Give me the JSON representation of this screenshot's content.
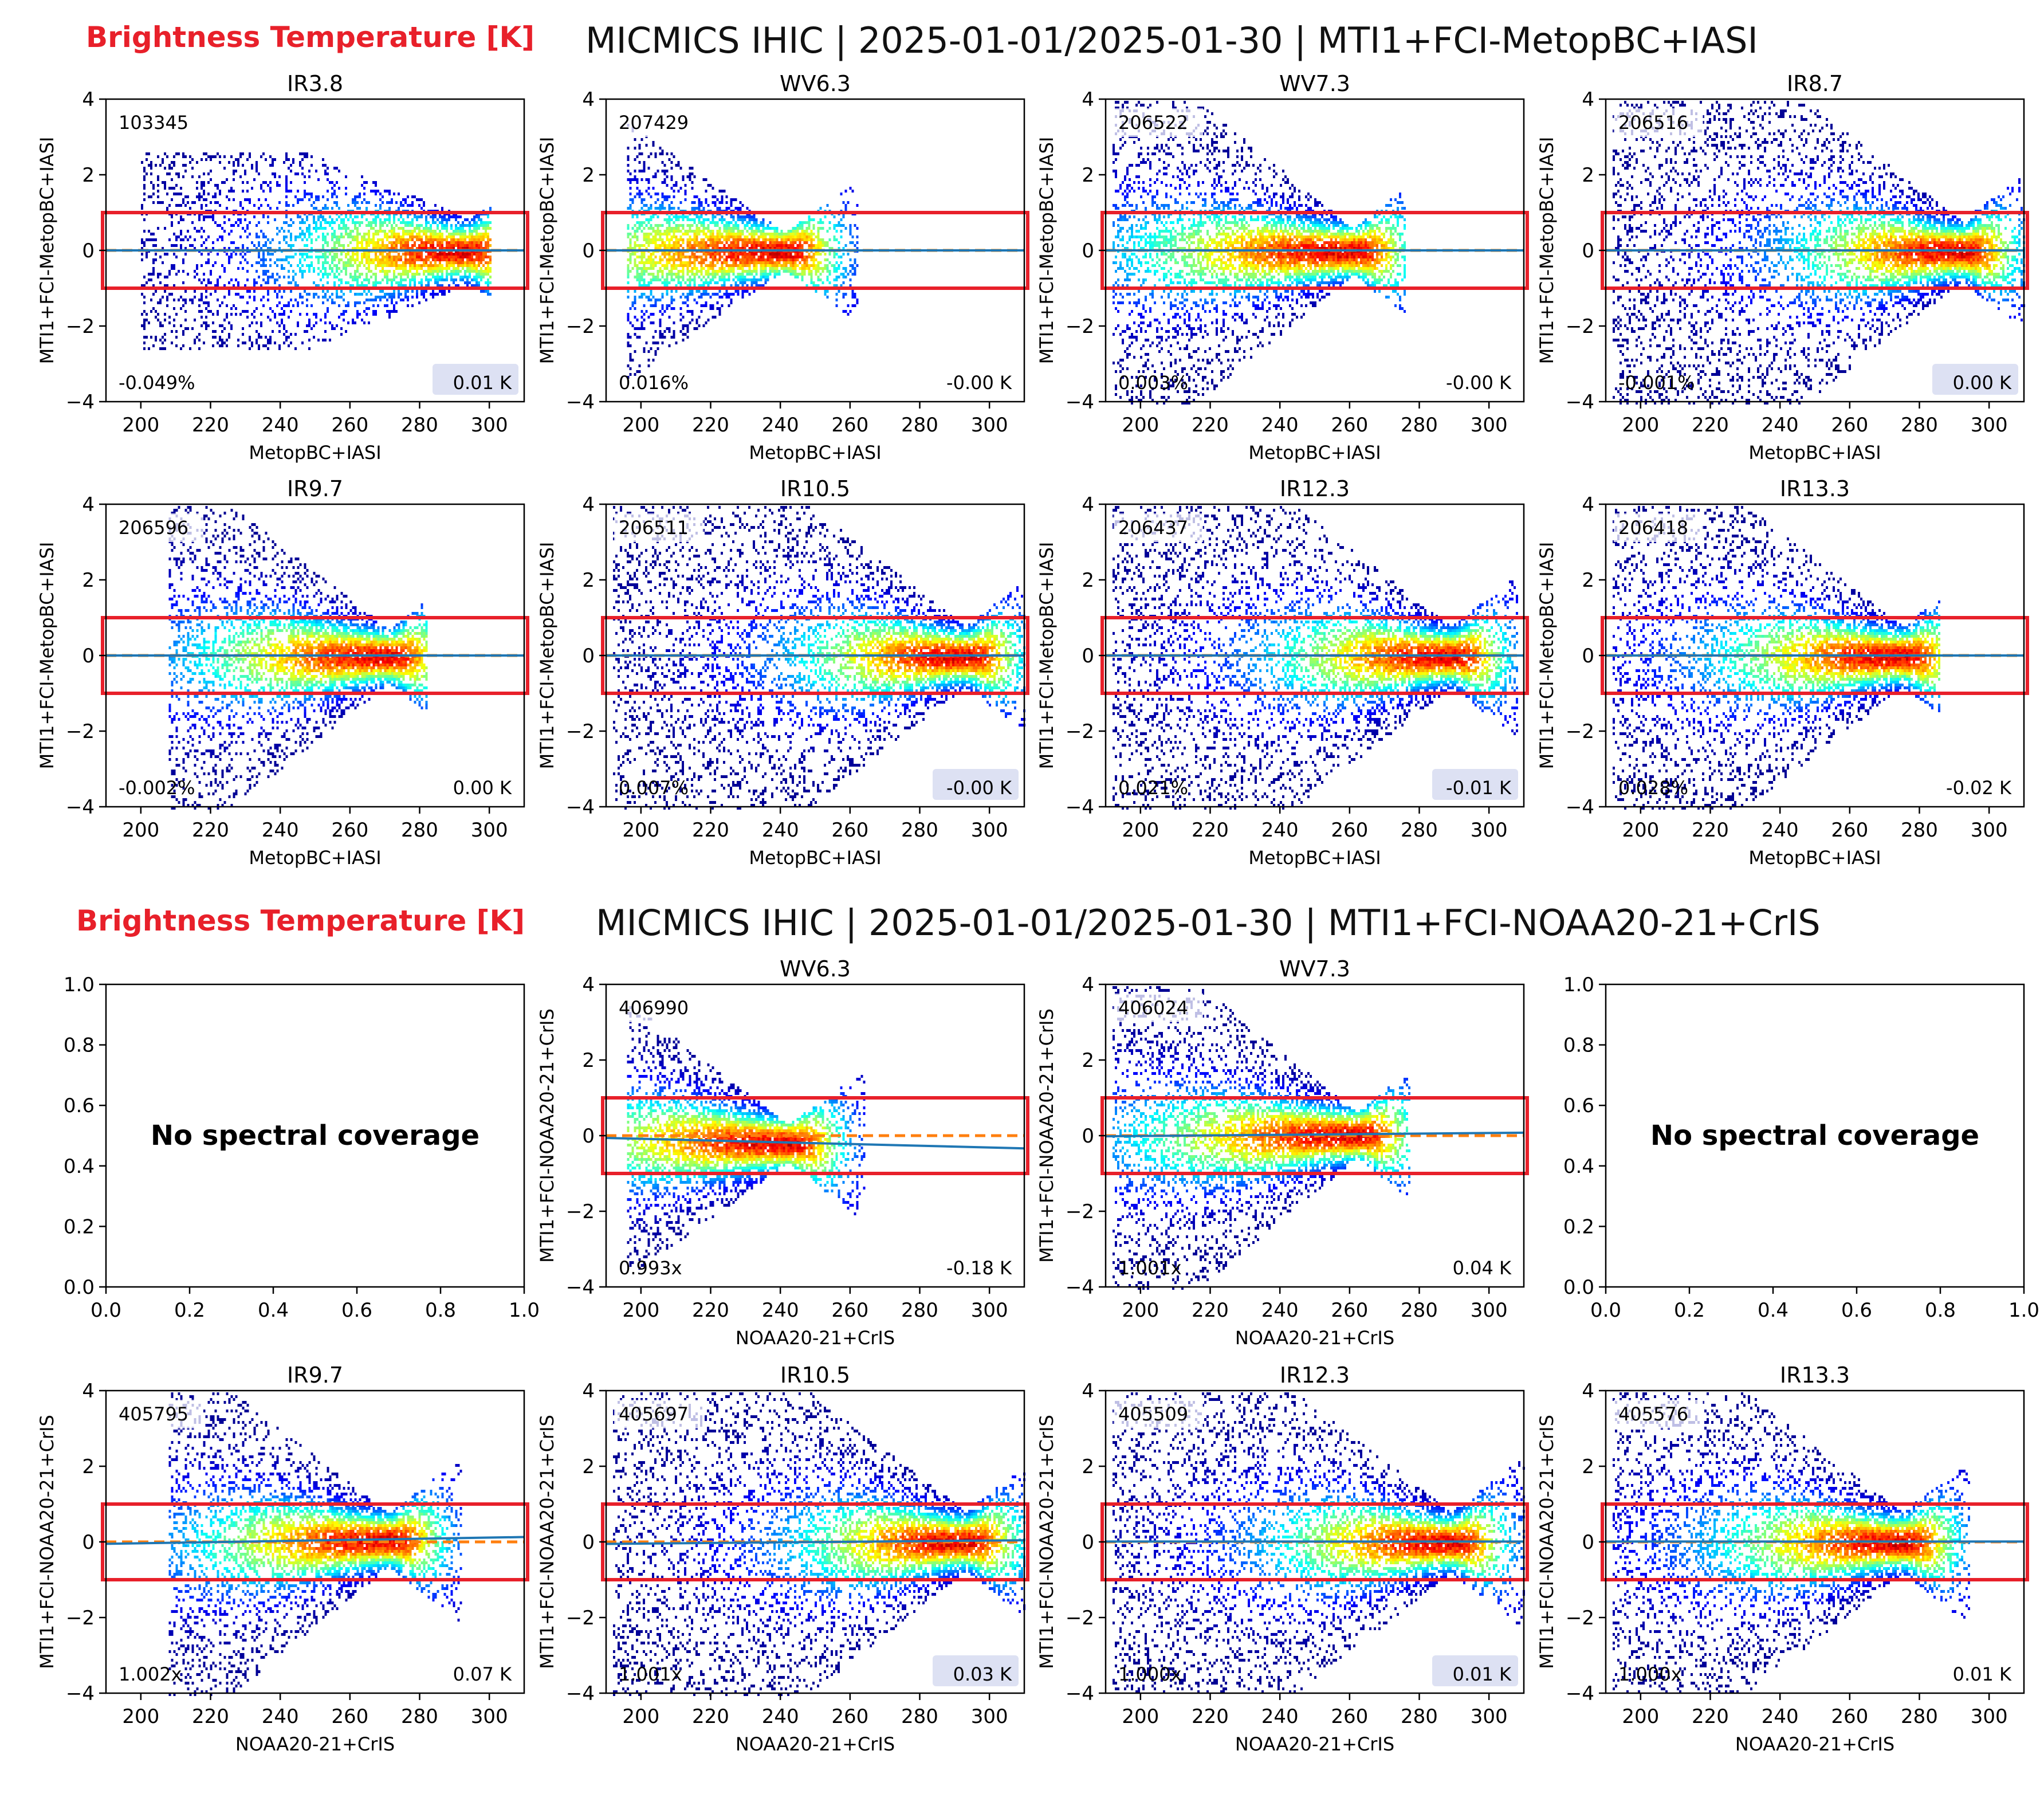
{
  "colors": {
    "accent": "#e8202a",
    "fit_line": "#1f77b4",
    "ref_line": "#ff7f0e",
    "axis": "#000000"
  },
  "figures": [
    {
      "label": "Brightness Temperature [K]",
      "title": "MICMICS IHIC | 2025-01-01/2025-01-30 | MTI1+FCI-MetopBC+IASI",
      "ylabel": "MTI1+FCI-MetopBC+IASI",
      "xlabel": "MetopBC+IASI"
    },
    {
      "label": "Brightness Temperature [K]",
      "title": "MICMICS IHIC | 2025-01-01/2025-01-30 | MTI1+FCI-NOAA20-21+CrIS",
      "ylabel": "MTI1+FCI-NOAA20-21+CrIS",
      "xlabel": "NOAA20-21+CrIS"
    }
  ],
  "chart_data": [
    {
      "type": "heatmap",
      "figure": 0,
      "channel": "IR3.8",
      "count": "103345",
      "corner_left": "-0.049%",
      "corner_right": "0.01 K",
      "xlim": [
        190,
        310
      ],
      "ylim": [
        -4,
        4
      ],
      "xticks": [
        200,
        220,
        240,
        260,
        280,
        300
      ],
      "yticks": [
        4,
        2,
        0,
        -2,
        -4
      ],
      "peak": [
        293,
        0
      ],
      "xmin": 200,
      "xmax": 300,
      "spread": [
        0.9,
        2.6
      ],
      "skew": 0.9,
      "fit_slope": 0,
      "legend_box": true,
      "highlight_band": [
        -1,
        1
      ]
    },
    {
      "type": "heatmap",
      "figure": 0,
      "channel": "WV6.3",
      "count": "207429",
      "corner_left": "0.016%",
      "corner_right": "-0.00 K",
      "xlim": [
        190,
        310
      ],
      "ylim": [
        -4,
        4
      ],
      "xticks": [
        200,
        220,
        240,
        260,
        280,
        300
      ],
      "yticks": [
        4,
        2,
        0,
        -2,
        -4
      ],
      "peak": [
        241,
        0
      ],
      "xmin": 196,
      "xmax": 262,
      "spread": [
        0.5,
        3.4
      ],
      "skew": 1.5,
      "fit_slope": 0,
      "legend_box": false,
      "highlight_band": [
        -1,
        1
      ]
    },
    {
      "type": "heatmap",
      "figure": 0,
      "channel": "WV7.3",
      "count": "206522",
      "corner_left": "0.003%",
      "corner_right": "-0.00 K",
      "xlim": [
        190,
        310
      ],
      "ylim": [
        -4,
        4
      ],
      "xticks": [
        200,
        220,
        240,
        260,
        280,
        300
      ],
      "yticks": [
        4,
        2,
        0,
        -2,
        -4
      ],
      "peak": [
        261,
        0
      ],
      "xmin": 192,
      "xmax": 276,
      "spread": [
        0.6,
        4
      ],
      "skew": 1.6,
      "fit_slope": 0,
      "legend_box": false,
      "highlight_band": [
        -1,
        1
      ]
    },
    {
      "type": "heatmap",
      "figure": 0,
      "channel": "IR8.7",
      "count": "206516",
      "corner_left": "-0.001%",
      "corner_right": "0.00 K",
      "xlim": [
        190,
        310
      ],
      "ylim": [
        -4,
        4
      ],
      "xticks": [
        200,
        220,
        240,
        260,
        280,
        300
      ],
      "yticks": [
        4,
        2,
        0,
        -2,
        -4
      ],
      "peak": [
        292,
        0
      ],
      "xmin": 192,
      "xmax": 310,
      "spread": [
        0.8,
        4
      ],
      "skew": 0.9,
      "fit_slope": 0,
      "legend_box": true,
      "highlight_band": [
        -1,
        1
      ]
    },
    {
      "type": "heatmap",
      "figure": 0,
      "channel": "IR9.7",
      "count": "206596",
      "corner_left": "-0.002%",
      "corner_right": "0.00 K",
      "xlim": [
        190,
        310
      ],
      "ylim": [
        -4,
        4
      ],
      "xticks": [
        200,
        220,
        240,
        260,
        280,
        300
      ],
      "yticks": [
        4,
        2,
        0,
        -2,
        -4
      ],
      "peak": [
        271,
        0
      ],
      "xmin": 208,
      "xmax": 282,
      "spread": [
        0.7,
        4
      ],
      "skew": 1.2,
      "fit_slope": 0,
      "legend_box": false,
      "highlight_band": [
        -1,
        1
      ]
    },
    {
      "type": "heatmap",
      "figure": 0,
      "channel": "IR10.5",
      "count": "206511",
      "corner_left": "0.007%",
      "corner_right": "-0.00 K",
      "xlim": [
        190,
        310
      ],
      "ylim": [
        -4,
        4
      ],
      "xticks": [
        200,
        220,
        240,
        260,
        280,
        300
      ],
      "yticks": [
        4,
        2,
        0,
        -2,
        -4
      ],
      "peak": [
        293,
        0
      ],
      "xmin": 192,
      "xmax": 310,
      "spread": [
        0.8,
        4
      ],
      "skew": 0.9,
      "fit_slope": 0,
      "legend_box": true,
      "highlight_band": [
        -1,
        1
      ]
    },
    {
      "type": "heatmap",
      "figure": 0,
      "channel": "IR12.3",
      "count": "206437",
      "corner_left": "0.021%",
      "corner_right": "-0.01 K",
      "xlim": [
        190,
        310
      ],
      "ylim": [
        -4,
        4
      ],
      "xticks": [
        200,
        220,
        240,
        260,
        280,
        300
      ],
      "yticks": [
        4,
        2,
        0,
        -2,
        -4
      ],
      "peak": [
        289,
        0
      ],
      "xmin": 192,
      "xmax": 308,
      "spread": [
        0.8,
        4
      ],
      "skew": 1.0,
      "fit_slope": 0,
      "legend_box": true,
      "highlight_band": [
        -1,
        1
      ]
    },
    {
      "type": "heatmap",
      "figure": 0,
      "channel": "IR13.3",
      "count": "206418",
      "corner_left": "0.028%",
      "corner_right": "-0.02 K",
      "xlim": [
        190,
        310
      ],
      "ylim": [
        -4,
        4
      ],
      "xticks": [
        200,
        220,
        240,
        260,
        280,
        300
      ],
      "yticks": [
        4,
        2,
        0,
        -2,
        -4
      ],
      "peak": [
        275,
        0
      ],
      "xmin": 192,
      "xmax": 286,
      "spread": [
        0.8,
        4
      ],
      "skew": 1.1,
      "fit_slope": 0,
      "legend_box": false,
      "highlight_band": [
        -1,
        1
      ]
    },
    {
      "type": "empty",
      "figure": 1,
      "message": "No spectral coverage",
      "xlim": [
        0,
        1
      ],
      "ylim": [
        0,
        1
      ],
      "xticks": [
        "0.0",
        "0.2",
        "0.4",
        "0.6",
        "0.8",
        "1.0"
      ],
      "yticks": [
        "1.0",
        "0.8",
        "0.6",
        "0.4",
        "0.2",
        "0.0"
      ]
    },
    {
      "type": "heatmap",
      "figure": 1,
      "channel": "WV6.3",
      "count": "406990",
      "corner_left": "0.993x",
      "corner_right": "-0.18 K",
      "xlim": [
        190,
        310
      ],
      "ylim": [
        -4,
        4
      ],
      "xticks": [
        200,
        220,
        240,
        260,
        280,
        300
      ],
      "yticks": [
        4,
        2,
        0,
        -2,
        -4
      ],
      "peak": [
        242,
        -0.18
      ],
      "xmin": 196,
      "xmax": 264,
      "spread": [
        0.5,
        3.6
      ],
      "skew": 1.5,
      "fit_slope": -0.0023,
      "legend_box": false,
      "highlight_band": [
        -1,
        1
      ]
    },
    {
      "type": "heatmap",
      "figure": 1,
      "channel": "WV7.3",
      "count": "406024",
      "corner_left": "1.001x",
      "corner_right": "0.04 K",
      "xlim": [
        190,
        310
      ],
      "ylim": [
        -4,
        4
      ],
      "xticks": [
        200,
        220,
        240,
        260,
        280,
        300
      ],
      "yticks": [
        4,
        2,
        0,
        -2,
        -4
      ],
      "peak": [
        262,
        0.04
      ],
      "xmin": 192,
      "xmax": 277,
      "spread": [
        0.6,
        4
      ],
      "skew": 1.6,
      "fit_slope": 0.0008,
      "legend_box": false,
      "highlight_band": [
        -1,
        1
      ]
    },
    {
      "type": "empty",
      "figure": 1,
      "message": "No spectral coverage",
      "xlim": [
        0,
        1
      ],
      "ylim": [
        0,
        1
      ],
      "xticks": [
        "0.0",
        "0.2",
        "0.4",
        "0.6",
        "0.8",
        "1.0"
      ],
      "yticks": [
        "1.0",
        "0.8",
        "0.6",
        "0.4",
        "0.2",
        "0.0"
      ]
    },
    {
      "type": "heatmap",
      "figure": 1,
      "channel": "IR9.7",
      "count": "405795",
      "corner_left": "1.002x",
      "corner_right": "0.07 K",
      "xlim": [
        190,
        310
      ],
      "ylim": [
        -4,
        4
      ],
      "xticks": [
        200,
        220,
        240,
        260,
        280,
        300
      ],
      "yticks": [
        4,
        2,
        0,
        -2,
        -4
      ],
      "peak": [
        271,
        0.07
      ],
      "xmin": 208,
      "xmax": 292,
      "spread": [
        0.7,
        4
      ],
      "skew": 1.2,
      "fit_slope": 0.0015,
      "legend_box": false,
      "highlight_band": [
        -1,
        1
      ]
    },
    {
      "type": "heatmap",
      "figure": 1,
      "channel": "IR10.5",
      "count": "405697",
      "corner_left": "1.001x",
      "corner_right": "0.03 K",
      "xlim": [
        190,
        310
      ],
      "ylim": [
        -4,
        4
      ],
      "xticks": [
        200,
        220,
        240,
        260,
        280,
        300
      ],
      "yticks": [
        4,
        2,
        0,
        -2,
        -4
      ],
      "peak": [
        293,
        0.03
      ],
      "xmin": 192,
      "xmax": 310,
      "spread": [
        0.8,
        4
      ],
      "skew": 0.9,
      "fit_slope": 0.0008,
      "legend_box": true,
      "highlight_band": [
        -1,
        1
      ]
    },
    {
      "type": "heatmap",
      "figure": 1,
      "channel": "IR12.3",
      "count": "405509",
      "corner_left": "1.000x",
      "corner_right": "0.01 K",
      "xlim": [
        190,
        310
      ],
      "ylim": [
        -4,
        4
      ],
      "xticks": [
        200,
        220,
        240,
        260,
        280,
        300
      ],
      "yticks": [
        4,
        2,
        0,
        -2,
        -4
      ],
      "peak": [
        289,
        0.01
      ],
      "xmin": 192,
      "xmax": 310,
      "spread": [
        0.8,
        4
      ],
      "skew": 1.0,
      "fit_slope": 0,
      "legend_box": true,
      "highlight_band": [
        -1,
        1
      ]
    },
    {
      "type": "heatmap",
      "figure": 1,
      "channel": "IR13.3",
      "count": "405576",
      "corner_left": "1.000x",
      "corner_right": "0.01 K",
      "xlim": [
        190,
        310
      ],
      "ylim": [
        -4,
        4
      ],
      "xticks": [
        200,
        220,
        240,
        260,
        280,
        300
      ],
      "yticks": [
        4,
        2,
        0,
        -2,
        -4
      ],
      "peak": [
        275,
        0.01
      ],
      "xmin": 192,
      "xmax": 294,
      "spread": [
        0.8,
        4
      ],
      "skew": 1.1,
      "fit_slope": 0,
      "legend_box": false,
      "highlight_band": [
        -1,
        1
      ]
    }
  ]
}
